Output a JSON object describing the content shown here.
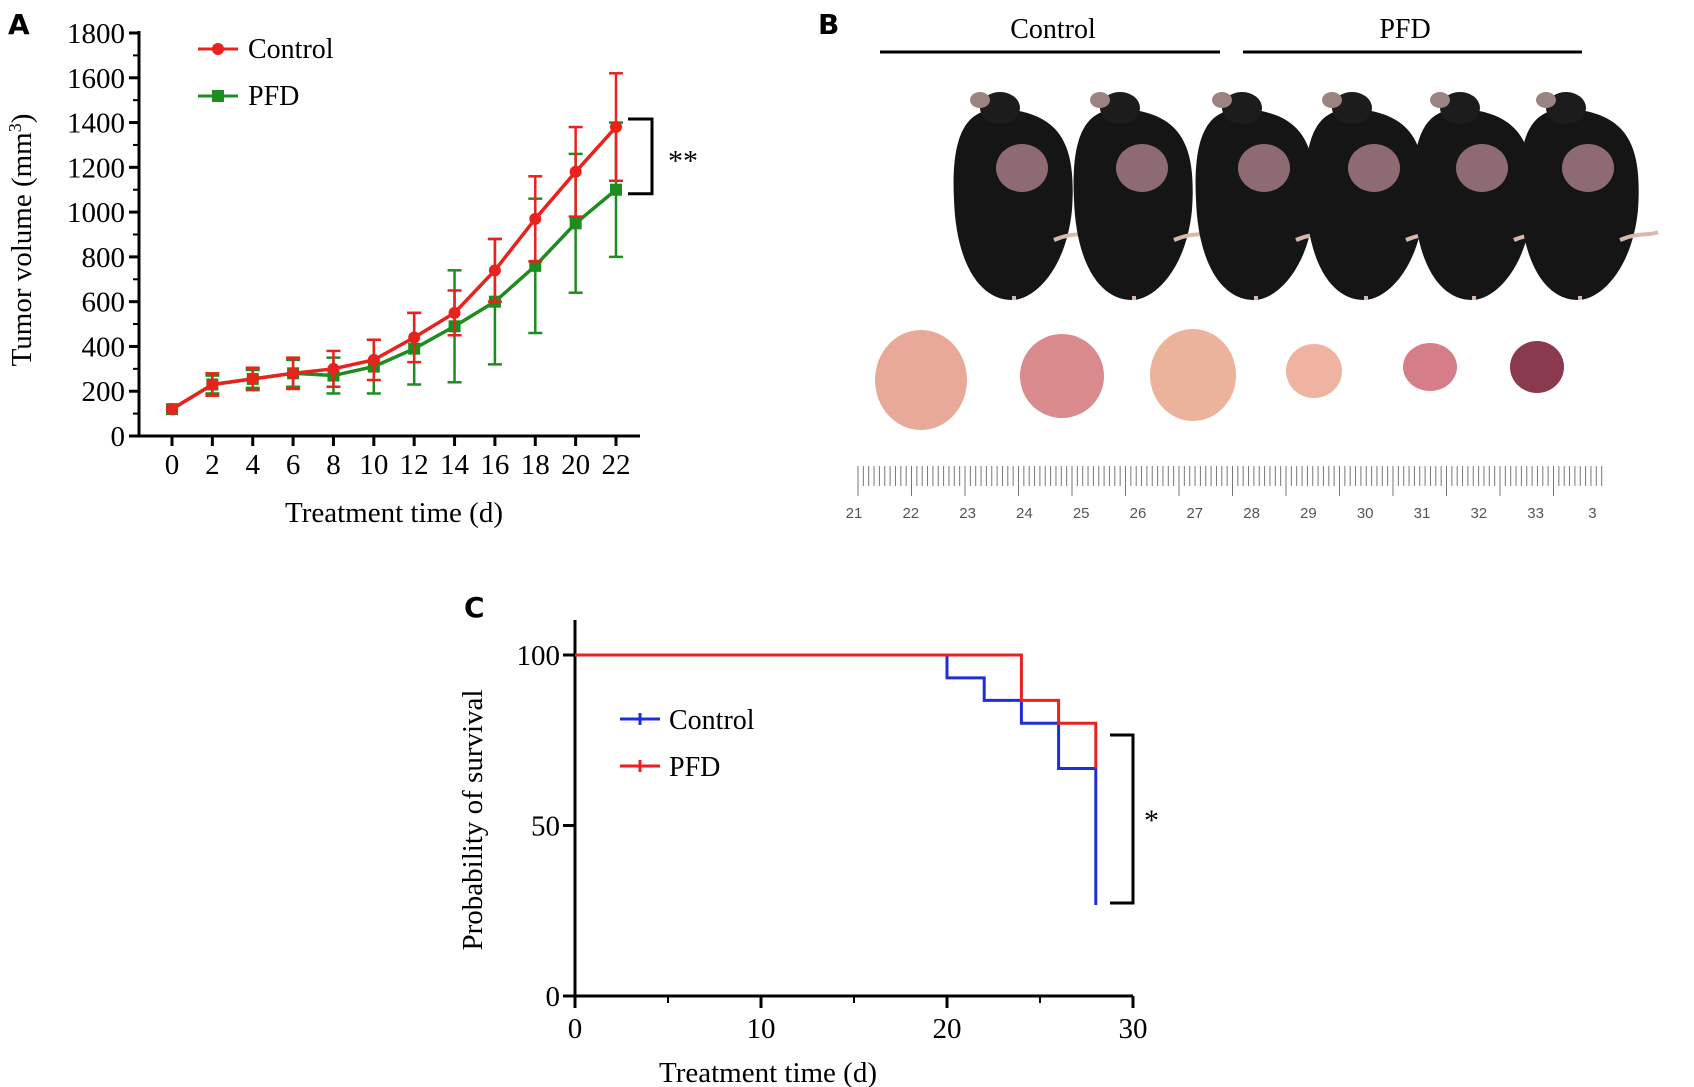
{
  "figure": {
    "panels": [
      {
        "letter": "A"
      },
      {
        "letter": "B"
      },
      {
        "letter": "C"
      }
    ]
  },
  "chart_data": [
    {
      "panel": "A",
      "type": "line",
      "xlabel": "Treatment time (d)",
      "ylabel": "Tumor volume (mm",
      "ylabel_superscript": "3",
      "ylabel_suffix": ")",
      "x": [
        0,
        2,
        4,
        6,
        8,
        10,
        12,
        14,
        16,
        18,
        20,
        22
      ],
      "xlim": [
        0,
        22
      ],
      "ylim": [
        0,
        1800
      ],
      "yticks": [
        0,
        200,
        400,
        600,
        800,
        1000,
        1200,
        1400,
        1600,
        1800
      ],
      "xticks": [
        "0",
        "2",
        "4",
        "6",
        "8",
        "10",
        "12",
        "14",
        "16",
        "18",
        "20",
        "22"
      ],
      "legend_position": "top-left",
      "significance": "**",
      "series": [
        {
          "name": "Control",
          "color": "#e8221c",
          "marker": "circle",
          "values": [
            120,
            230,
            255,
            280,
            300,
            340,
            440,
            550,
            740,
            970,
            1180,
            1380
          ],
          "err": [
            0,
            50,
            50,
            70,
            80,
            90,
            110,
            100,
            140,
            190,
            200,
            240
          ]
        },
        {
          "name": "PFD",
          "color": "#1e8c1e",
          "marker": "square",
          "values": [
            120,
            230,
            255,
            280,
            270,
            310,
            390,
            490,
            600,
            760,
            950,
            1100
          ],
          "err": [
            0,
            40,
            40,
            60,
            80,
            120,
            160,
            250,
            280,
            300,
            310,
            300
          ]
        }
      ]
    },
    {
      "panel": "C",
      "type": "line",
      "subtype": "step",
      "xlabel": "Treatment time (d)",
      "ylabel": "Probability of survival",
      "xlim": [
        0,
        30
      ],
      "ylim": [
        0,
        100
      ],
      "xticks": [
        "0",
        "10",
        "20",
        "30"
      ],
      "yticks": [
        "0",
        "50",
        "100"
      ],
      "legend_position": "center-left",
      "significance": "*",
      "series": [
        {
          "name": "Control",
          "color": "#1f2fd6",
          "steps": [
            [
              0,
              100
            ],
            [
              20,
              100
            ],
            [
              20,
              93.3
            ],
            [
              22,
              93.3
            ],
            [
              22,
              86.7
            ],
            [
              24,
              86.7
            ],
            [
              24,
              80
            ],
            [
              26,
              80
            ],
            [
              26,
              66.7
            ],
            [
              28,
              66.7
            ],
            [
              28,
              26.7
            ]
          ]
        },
        {
          "name": "PFD",
          "color": "#e8221c",
          "steps": [
            [
              0,
              100
            ],
            [
              24,
              100
            ],
            [
              24,
              86.7
            ],
            [
              26,
              86.7
            ],
            [
              26,
              80
            ],
            [
              28,
              80
            ],
            [
              28,
              66.7
            ]
          ]
        }
      ]
    }
  ],
  "photo": {
    "panel": "B",
    "group_labels": [
      "Control",
      "PFD"
    ],
    "ruler_labels": [
      "21",
      "22",
      "23",
      "24",
      "25",
      "26",
      "27",
      "28",
      "29",
      "30",
      "31",
      "32",
      "33",
      "3"
    ]
  }
}
